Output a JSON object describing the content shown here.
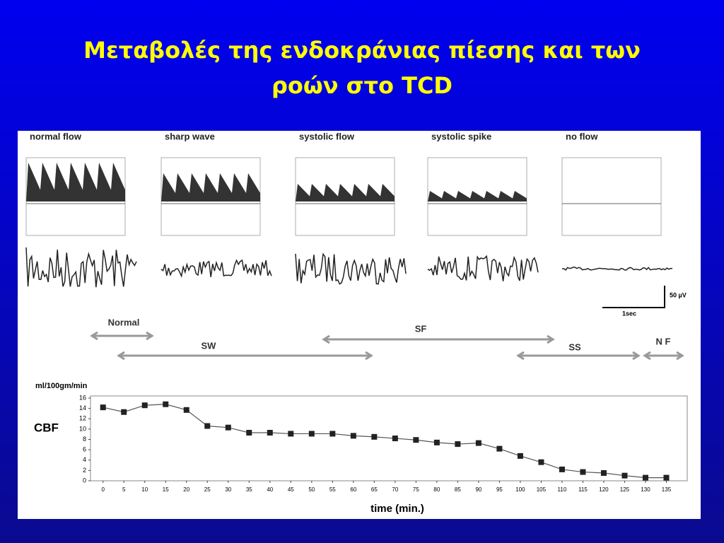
{
  "title": [
    "Μεταβολές της ενδοκράνιας πίεσης και των",
    "ροών στο TCD"
  ],
  "panels": [
    "normal flow",
    "sharp wave",
    "systolic flow",
    "systolic spike",
    "no flow"
  ],
  "scale": [
    "50 µV",
    "1sec"
  ],
  "phases": [
    "Normal",
    "SW",
    "SF",
    "SS",
    "N F"
  ],
  "chart_data": {
    "type": "line",
    "title": "CBF",
    "y_unit": "ml/100gm/min",
    "x_label": "time (min.)",
    "x": [
      0,
      5,
      10,
      15,
      20,
      25,
      30,
      35,
      40,
      45,
      50,
      55,
      60,
      65,
      70,
      75,
      80,
      85,
      90,
      95,
      100,
      105,
      110,
      115,
      120,
      125,
      130,
      135
    ],
    "series": [
      {
        "name": "CBF",
        "color": "#555555",
        "values": [
          14.2,
          13.3,
          14.6,
          14.8,
          13.7,
          10.6,
          10.3,
          9.3,
          9.3,
          9.1,
          9.1,
          9.1,
          8.7,
          8.5,
          8.2,
          7.9,
          7.4,
          7.1,
          7.3,
          6.2,
          4.8,
          3.6,
          2.2,
          1.7,
          1.5,
          1.0,
          0.6,
          0.6
        ]
      }
    ],
    "xlim": [
      -3,
      140
    ],
    "ylim": [
      0,
      16
    ],
    "xticks": [
      0,
      5,
      10,
      15,
      20,
      25,
      30,
      35,
      40,
      45,
      50,
      55,
      60,
      65,
      70,
      75,
      80,
      85,
      90,
      95,
      100,
      105,
      110,
      115,
      120,
      125,
      130,
      135
    ],
    "yticks": [
      0,
      2,
      4,
      6,
      8,
      10,
      12,
      14,
      16
    ],
    "grid": false
  }
}
